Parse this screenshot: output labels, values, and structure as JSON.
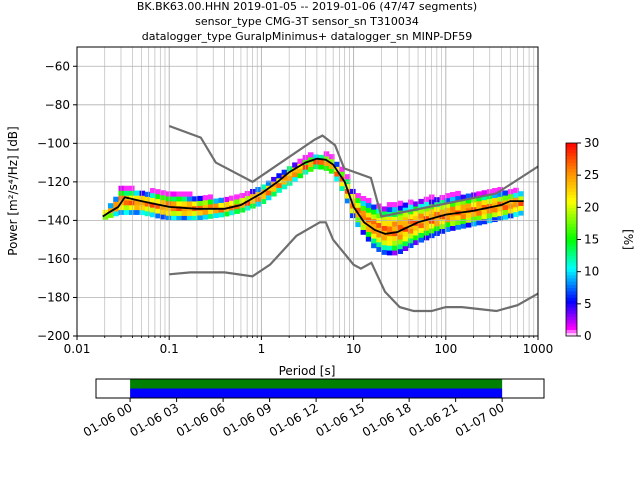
{
  "chart_data": {
    "type": "heatmap",
    "title_lines": [
      "BK.BK63.00.HHN   2019-01-05 -- 2019-01-06  (47/47 segments)",
      "sensor_type CMG-3T sensor_sn T310034",
      "datalogger_type GuralpMinimus+ datalogger_sn MINP-DF59"
    ],
    "xlabel": "Period [s]",
    "ylabel": "Power [m²/s⁴/Hz] [dB]",
    "xscale": "log",
    "xlim": [
      0.01,
      1000
    ],
    "ylim": [
      -200,
      -50
    ],
    "xticks": [
      0.01,
      0.1,
      1,
      10,
      100,
      1000
    ],
    "xtick_labels": [
      "0.01",
      "0.1",
      "1",
      "10",
      "100",
      "1000"
    ],
    "yticks": [
      -60,
      -80,
      -100,
      -120,
      -140,
      -160,
      -180,
      -200
    ],
    "grid": true,
    "colorbar": {
      "label": "[%]",
      "range": [
        0,
        30
      ],
      "ticks": [
        0,
        5,
        10,
        15,
        20,
        25,
        30
      ]
    },
    "noise_models": {
      "high": [
        [
          0.1,
          -91
        ],
        [
          0.22,
          -97
        ],
        [
          0.32,
          -110
        ],
        [
          0.8,
          -120
        ],
        [
          3.8,
          -98
        ],
        [
          4.6,
          -96
        ],
        [
          6.3,
          -101
        ],
        [
          7.9,
          -113
        ],
        [
          15.4,
          -118
        ],
        [
          20,
          -138
        ],
        [
          354,
          -126
        ],
        [
          1000,
          -112
        ]
      ],
      "low": [
        [
          0.1,
          -168
        ],
        [
          0.17,
          -167
        ],
        [
          0.4,
          -167
        ],
        [
          0.8,
          -169
        ],
        [
          1.24,
          -163
        ],
        [
          2.4,
          -148
        ],
        [
          4.3,
          -141
        ],
        [
          5,
          -141
        ],
        [
          6,
          -150
        ],
        [
          10,
          -163
        ],
        [
          12,
          -165
        ],
        [
          15.6,
          -162
        ],
        [
          21.9,
          -177
        ],
        [
          31.6,
          -185
        ],
        [
          45,
          -187
        ],
        [
          70,
          -187
        ],
        [
          100,
          -185
        ],
        [
          150,
          -185
        ],
        [
          354,
          -187
        ],
        [
          600,
          -184
        ],
        [
          1000,
          -178
        ]
      ]
    },
    "mean_curve": [
      [
        0.019,
        -138
      ],
      [
        0.022,
        -136
      ],
      [
        0.028,
        -133
      ],
      [
        0.033,
        -128
      ],
      [
        0.05,
        -130
      ],
      [
        0.1,
        -133
      ],
      [
        0.2,
        -134
      ],
      [
        0.4,
        -134
      ],
      [
        0.6,
        -132
      ],
      [
        1,
        -126
      ],
      [
        1.5,
        -120
      ],
      [
        2,
        -115
      ],
      [
        3,
        -110
      ],
      [
        4,
        -108
      ],
      [
        5,
        -108.5
      ],
      [
        6,
        -111
      ],
      [
        8,
        -120
      ],
      [
        10,
        -133
      ],
      [
        13,
        -141
      ],
      [
        17,
        -145
      ],
      [
        22,
        -147
      ],
      [
        30,
        -146
      ],
      [
        50,
        -141
      ],
      [
        100,
        -137
      ],
      [
        200,
        -135
      ],
      [
        400,
        -132
      ],
      [
        500,
        -130
      ],
      [
        700,
        -130
      ]
    ],
    "psd_band": [
      [
        0.019,
        -136,
        -140
      ],
      [
        0.025,
        -130,
        -138
      ],
      [
        0.03,
        -123,
        -137
      ],
      [
        0.05,
        -125,
        -137
      ],
      [
        0.1,
        -126,
        -140
      ],
      [
        0.2,
        -128,
        -140
      ],
      [
        0.4,
        -129,
        -138
      ],
      [
        0.6,
        -128,
        -136
      ],
      [
        1,
        -122,
        -132
      ],
      [
        1.5,
        -117,
        -126
      ],
      [
        2,
        -112,
        -122
      ],
      [
        3,
        -108,
        -116
      ],
      [
        4,
        -106,
        -113
      ],
      [
        5,
        -106,
        -114
      ],
      [
        6,
        -108,
        -116
      ],
      [
        8,
        -115,
        -127
      ],
      [
        10,
        -125,
        -140
      ],
      [
        13,
        -130,
        -148
      ],
      [
        17,
        -132,
        -155
      ],
      [
        22,
        -133,
        -158
      ],
      [
        30,
        -132,
        -158
      ],
      [
        50,
        -130,
        -152
      ],
      [
        100,
        -128,
        -146
      ],
      [
        200,
        -126,
        -143
      ],
      [
        400,
        -125,
        -140
      ],
      [
        700,
        -125,
        -137
      ]
    ],
    "time_axis": {
      "tick_labels": [
        "01-06 00",
        "01-06 03",
        "01-06 06",
        "01-06 09",
        "01-06 12",
        "01-06 15",
        "01-06 18",
        "01-06 21",
        "01-07 00"
      ],
      "start_hour": -2.2,
      "end_hour": 26.7,
      "coverage": [
        0,
        24
      ]
    }
  }
}
